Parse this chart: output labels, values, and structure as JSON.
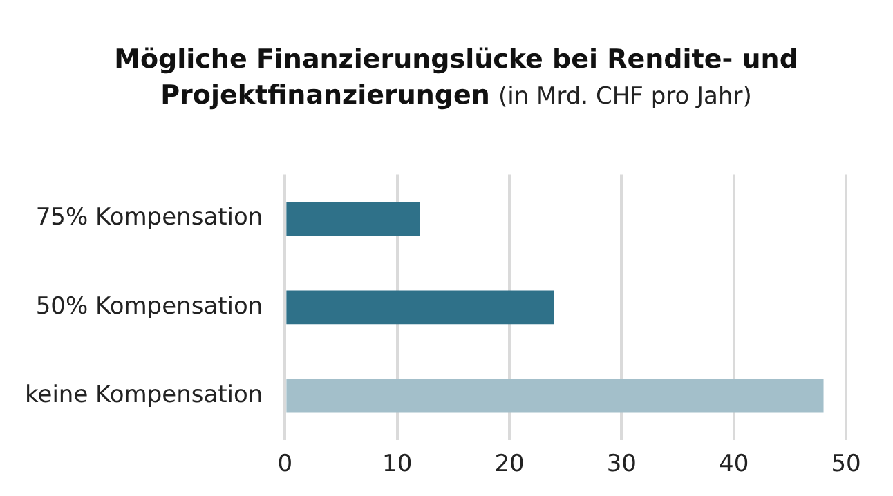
{
  "chart_data": {
    "type": "bar",
    "orientation": "horizontal",
    "title": "Mögliche Finanzierungslücke bei Rendite- und Projektfinanzierungen",
    "subtitle": "(in Mrd. CHF pro Jahr)",
    "categories": [
      "75% Kompensation",
      "50% Kompensation",
      "keine Kompensation"
    ],
    "values": [
      12,
      24,
      48
    ],
    "colors": [
      "#2f7189",
      "#2f7189",
      "#a3bfca"
    ],
    "xlim": [
      0,
      50
    ],
    "xticks": [
      0,
      10,
      20,
      30,
      40,
      50
    ],
    "grid": "x",
    "legend": false
  }
}
